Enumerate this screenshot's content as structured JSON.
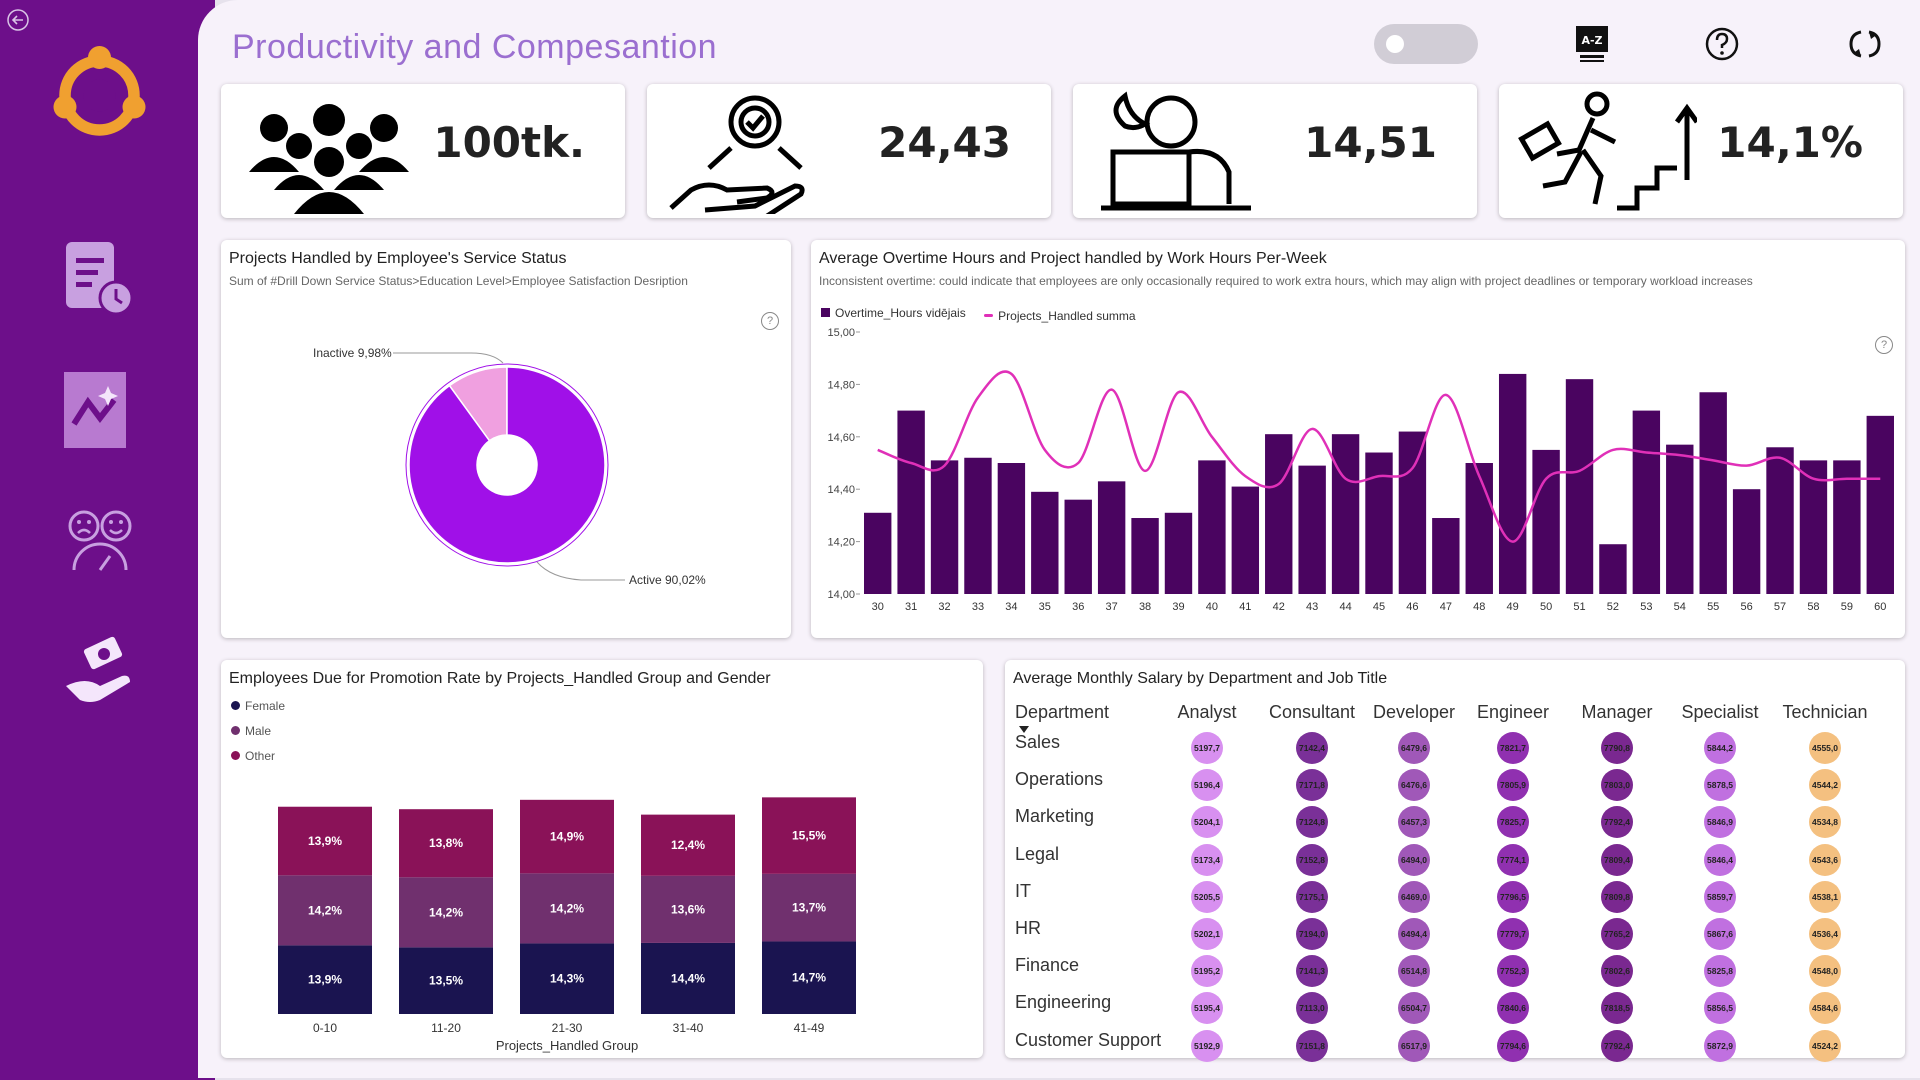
{
  "page_title": "Productivity and Compesantion",
  "kpis": [
    {
      "value": "100tk.",
      "icon": "people-group-icon"
    },
    {
      "value": "24,43",
      "icon": "gear-hand-icon"
    },
    {
      "value": "14,51",
      "icon": "night-laptop-worker-icon"
    },
    {
      "value": "14,1%",
      "icon": "promotion-stairs-icon"
    }
  ],
  "donut": {
    "title": "Projects Handled by Employee's Service Status",
    "subtitle": "Sum of #Drill Down Service Status>Education Level>Employee Satisfaction Desription",
    "help": "?",
    "chart_data": {
      "type": "pie",
      "slices": [
        {
          "label": "Active",
          "value": 90.02,
          "display": "Active 90,02%",
          "color": "#a010e8"
        },
        {
          "label": "Inactive",
          "value": 9.98,
          "display": "Inactive 9,98%",
          "color": "#f0a0e0"
        }
      ]
    }
  },
  "combo": {
    "title": "Average Overtime Hours and Project handled by Work Hours Per-Week",
    "subtitle": "Inconsistent overtime: could indicate that employees are only occasionally required to work extra hours, which may align with project deadlines or temporary workload increases",
    "help": "?",
    "legend": [
      "Overtime_Hours vidējais",
      "Projects_Handled summa"
    ],
    "colors": {
      "bar": "#4a0460",
      "line": "#e030b8"
    },
    "chart_data": {
      "type": "bar",
      "x": [
        30,
        31,
        32,
        33,
        34,
        35,
        36,
        37,
        38,
        39,
        40,
        41,
        42,
        43,
        44,
        45,
        46,
        47,
        48,
        49,
        50,
        51,
        52,
        53,
        54,
        55,
        56,
        57,
        58,
        59,
        60
      ],
      "y_ticks": [
        "15,00",
        "14,80",
        "14,60",
        "14,40",
        "14,20",
        "14,00"
      ],
      "ylim": [
        14.0,
        15.0
      ],
      "series": [
        {
          "name": "Overtime_Hours vidējais",
          "values": [
            14.31,
            14.7,
            14.51,
            14.52,
            14.5,
            14.39,
            14.36,
            14.43,
            14.29,
            14.31,
            14.51,
            14.41,
            14.61,
            14.49,
            14.61,
            14.54,
            14.62,
            14.29,
            14.5,
            14.84,
            14.55,
            14.82,
            14.19,
            14.7,
            14.57,
            14.77,
            14.4,
            14.56,
            14.51,
            14.51,
            14.68
          ]
        },
        {
          "name": "Projects_Handled summa",
          "rel_values": [
            0.55,
            0.5,
            0.49,
            0.75,
            0.84,
            0.55,
            0.5,
            0.78,
            0.47,
            0.77,
            0.6,
            0.45,
            0.42,
            0.63,
            0.44,
            0.45,
            0.48,
            0.76,
            0.45,
            0.2,
            0.44,
            0.47,
            0.55,
            0.54,
            0.53,
            0.51,
            0.49,
            0.52,
            0.44,
            0.44,
            0.44
          ]
        }
      ]
    }
  },
  "stacked": {
    "title": "Employees Due for Promotion Rate by Projects_Handled Group and Gender",
    "legend": [
      {
        "name": "Female",
        "color": "#1a1450"
      },
      {
        "name": "Male",
        "color": "#70306e"
      },
      {
        "name": "Other",
        "color": "#8a1258"
      }
    ],
    "chart_data": {
      "type": "bar",
      "stacked": true,
      "categories": [
        "0-10",
        "11-20",
        "21-30",
        "31-40",
        "41-49"
      ],
      "xlabel": "Projects_Handled Group",
      "series": [
        {
          "name": "Female",
          "values": [
            13.9,
            13.5,
            14.3,
            14.4,
            14.7
          ],
          "labels": [
            "13,9%",
            "13,5%",
            "14,3%",
            "14,4%",
            "14,7%"
          ]
        },
        {
          "name": "Male",
          "values": [
            14.2,
            14.2,
            14.2,
            13.6,
            13.7
          ],
          "labels": [
            "14,2%",
            "14,2%",
            "14,2%",
            "13,6%",
            "13,7%"
          ]
        },
        {
          "name": "Other",
          "values": [
            13.9,
            13.8,
            14.9,
            12.4,
            15.5
          ],
          "labels": [
            "13,9%",
            "13,8%",
            "14,9%",
            "12,4%",
            "15,5%"
          ]
        }
      ]
    }
  },
  "matrix": {
    "title": "Average Monthly Salary by Department and Job Title",
    "row_header": "Department",
    "columns": [
      "Analyst",
      "Consultant",
      "Developer",
      "Engineer",
      "Manager",
      "Specialist",
      "Technician"
    ],
    "column_colors": [
      "#d890f0",
      "#7a3098",
      "#a058b8",
      "#9030b0",
      "#7a2890",
      "#c070e0",
      "#f4c080"
    ],
    "rows": [
      {
        "dept": "Sales",
        "values": [
          "5197,7",
          "7142,4",
          "6479,6",
          "7821,7",
          "7790,8",
          "5844,2",
          "4555,0"
        ]
      },
      {
        "dept": "Operations",
        "values": [
          "5196,4",
          "7171,8",
          "6476,6",
          "7805,9",
          "7803,0",
          "5878,5",
          "4544,2"
        ]
      },
      {
        "dept": "Marketing",
        "values": [
          "5204,1",
          "7124,8",
          "6457,3",
          "7825,7",
          "7792,4",
          "5846,9",
          "4534,8"
        ]
      },
      {
        "dept": "Legal",
        "values": [
          "5173,4",
          "7152,8",
          "6494,0",
          "7774,1",
          "7809,4",
          "5846,4",
          "4543,6"
        ]
      },
      {
        "dept": "IT",
        "values": [
          "5205,5",
          "7175,1",
          "6469,0",
          "7796,5",
          "7809,8",
          "5859,7",
          "4538,1"
        ]
      },
      {
        "dept": "HR",
        "values": [
          "5202,1",
          "7194,0",
          "6494,4",
          "7779,7",
          "7765,2",
          "5867,6",
          "4536,4"
        ]
      },
      {
        "dept": "Finance",
        "values": [
          "5195,2",
          "7141,3",
          "6514,8",
          "7752,3",
          "7802,6",
          "5825,8",
          "4548,0"
        ]
      },
      {
        "dept": "Engineering",
        "values": [
          "5195,4",
          "7113,0",
          "6504,7",
          "7840,6",
          "7818,5",
          "5856,5",
          "4584,6"
        ]
      },
      {
        "dept": "Customer Support",
        "values": [
          "5192,9",
          "7151,8",
          "6517,9",
          "7794,6",
          "7792,4",
          "5872,9",
          "4524,2"
        ]
      }
    ]
  }
}
